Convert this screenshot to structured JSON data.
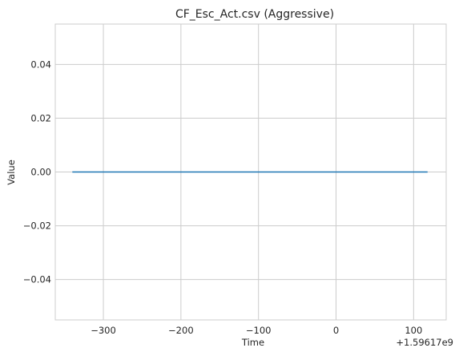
{
  "chart_data": {
    "type": "line",
    "title": "CF_Esc_Act.csv (Aggressive)",
    "xlabel": "Time",
    "ylabel": "Value",
    "x_offset_label": "+1.59617e9",
    "xlim": [
      -362,
      142
    ],
    "ylim": [
      -0.055,
      0.055
    ],
    "x_ticks": [
      -300,
      -200,
      -100,
      0,
      100
    ],
    "x_tick_labels": [
      "−300",
      "−200",
      "−100",
      "0",
      "100"
    ],
    "y_ticks": [
      -0.04,
      -0.02,
      0.0,
      0.02,
      0.04
    ],
    "y_tick_labels": [
      "−0.04",
      "−0.02",
      "0.00",
      "0.02",
      "0.04"
    ],
    "grid": true,
    "series": [
      {
        "color": "#1f77b4",
        "x": [
          -340,
          118
        ],
        "y": [
          0.0,
          0.0
        ]
      }
    ]
  }
}
